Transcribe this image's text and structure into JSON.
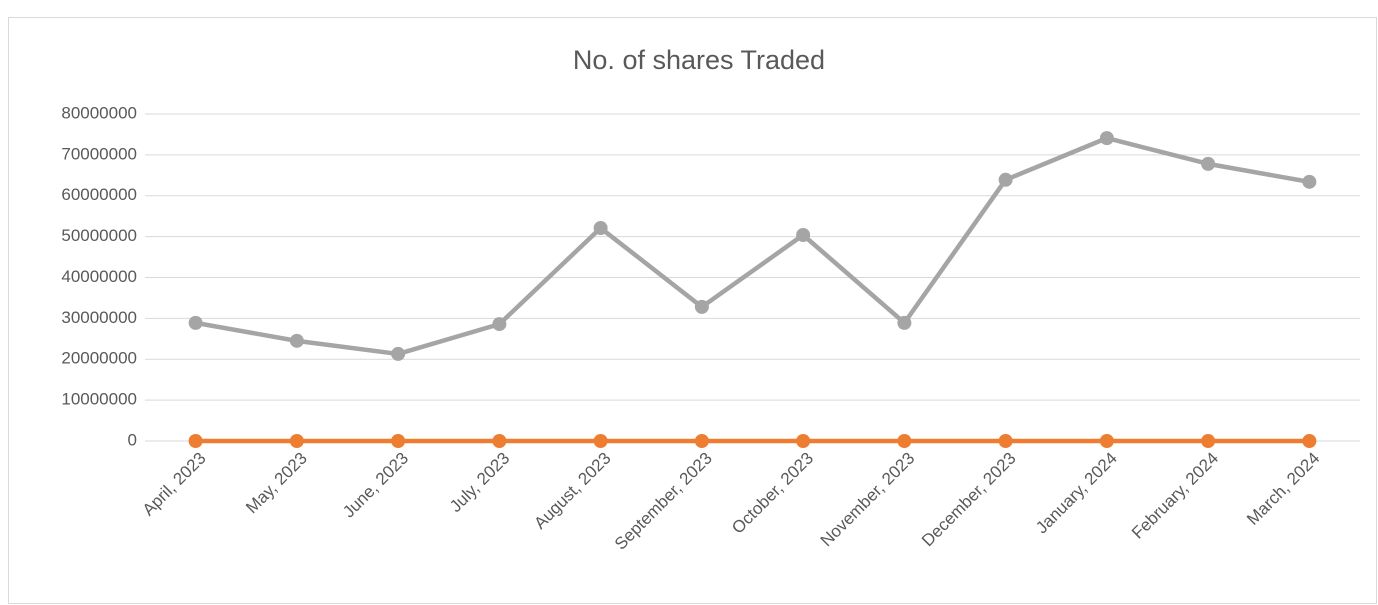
{
  "chart_data": {
    "type": "line",
    "title": "No. of shares Traded",
    "categories": [
      "April, 2023",
      "May, 2023",
      "June, 2023",
      "July, 2023",
      "August, 2023",
      "September, 2023",
      "October, 2023",
      "November, 2023",
      "December, 2023",
      "January, 2024",
      "February, 2024",
      "March, 2024"
    ],
    "series": [
      {
        "color": "#a5a5a5",
        "values": [
          28900000,
          24500000,
          21300000,
          28600000,
          52100000,
          32800000,
          50400000,
          28900000,
          63900000,
          74100000,
          67800000,
          63400000
        ]
      },
      {
        "color": "#ed7d31",
        "values": [
          0,
          0,
          0,
          0,
          0,
          0,
          0,
          0,
          0,
          0,
          0,
          0
        ]
      }
    ],
    "ylim": [
      0,
      80000000
    ],
    "yticks": [
      0,
      10000000,
      20000000,
      30000000,
      40000000,
      50000000,
      60000000,
      70000000,
      80000000
    ],
    "grid": true
  }
}
